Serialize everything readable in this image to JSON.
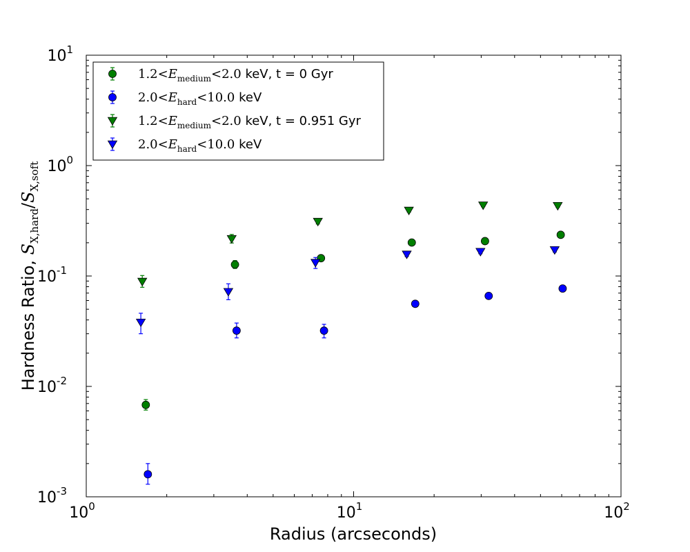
{
  "chart_data": {
    "type": "scatter",
    "xscale": "log",
    "yscale": "log",
    "xlim": [
      1,
      100
    ],
    "ylim": [
      0.001,
      10
    ],
    "grid": false,
    "legend_position": "top-left",
    "xlabel": "Radius (arcseconds)",
    "ylabel": {
      "prefix": "Hardness Ratio, ",
      "math_parts": [
        "S",
        "X,hard",
        "/",
        "S",
        "X,soft"
      ]
    },
    "x_ticks": [
      {
        "base": "10",
        "exp": "0",
        "value": 1
      },
      {
        "base": "10",
        "exp": "1",
        "value": 10
      },
      {
        "base": "10",
        "exp": "2",
        "value": 100
      }
    ],
    "y_ticks": [
      {
        "base": "10",
        "exp": "-3",
        "value": 0.001
      },
      {
        "base": "10",
        "exp": "-2",
        "value": 0.01
      },
      {
        "base": "10",
        "exp": "-1",
        "value": 0.1
      },
      {
        "base": "10",
        "exp": "0",
        "value": 1
      },
      {
        "base": "10",
        "exp": "1",
        "value": 10
      }
    ],
    "series": [
      {
        "name": "1.2 < E_medium < 2.0 keV, t = 0 Gyr",
        "legend": {
          "lo": "1.2",
          "sym": "E",
          "sub": "medium",
          "hi": "2.0",
          "rest": " keV, t = 0 Gyr"
        },
        "marker": "circle",
        "color": "#007f00",
        "points": [
          {
            "x": 1.67,
            "y": 0.0068,
            "yerr_lo": 0.0061,
            "yerr_hi": 0.0076
          },
          {
            "x": 3.6,
            "y": 0.127,
            "yerr_lo": 0.117,
            "yerr_hi": 0.138
          },
          {
            "x": 7.55,
            "y": 0.145,
            "yerr_lo": 0.137,
            "yerr_hi": 0.152
          },
          {
            "x": 16.5,
            "y": 0.201,
            "yerr_lo": 0.193,
            "yerr_hi": 0.209
          },
          {
            "x": 31.0,
            "y": 0.207,
            "yerr_lo": 0.199,
            "yerr_hi": 0.215
          },
          {
            "x": 59.5,
            "y": 0.236,
            "yerr_lo": 0.228,
            "yerr_hi": 0.244
          }
        ]
      },
      {
        "name": "2.0 < E_hard < 10.0 keV",
        "legend": {
          "lo": "2.0",
          "sym": "E",
          "sub": "hard",
          "hi": "10.0",
          "rest": " keV"
        },
        "marker": "circle",
        "color": "#0000ff",
        "points": [
          {
            "x": 1.7,
            "y": 0.0016,
            "yerr_lo": 0.0013,
            "yerr_hi": 0.002
          },
          {
            "x": 3.65,
            "y": 0.032,
            "yerr_lo": 0.0275,
            "yerr_hi": 0.0375
          },
          {
            "x": 7.75,
            "y": 0.032,
            "yerr_lo": 0.0275,
            "yerr_hi": 0.0365
          },
          {
            "x": 17.0,
            "y": 0.056,
            "yerr_lo": 0.054,
            "yerr_hi": 0.058
          },
          {
            "x": 32.0,
            "y": 0.066,
            "yerr_lo": 0.064,
            "yerr_hi": 0.069
          },
          {
            "x": 60.5,
            "y": 0.077,
            "yerr_lo": 0.075,
            "yerr_hi": 0.08
          }
        ]
      },
      {
        "name": "1.2 < E_medium < 2.0 keV, t = 0.951 Gyr",
        "legend": {
          "lo": "1.2",
          "sym": "E",
          "sub": "medium",
          "hi": "2.0",
          "rest": " keV, t = 0.951 Gyr"
        },
        "marker": "triangle-down",
        "color": "#007f00",
        "points": [
          {
            "x": 1.62,
            "y": 0.089,
            "yerr_lo": 0.079,
            "yerr_hi": 0.101
          },
          {
            "x": 3.5,
            "y": 0.217,
            "yerr_lo": 0.199,
            "yerr_hi": 0.238
          },
          {
            "x": 7.35,
            "y": 0.311,
            "yerr_lo": 0.296,
            "yerr_hi": 0.329
          },
          {
            "x": 16.1,
            "y": 0.392,
            "yerr_lo": 0.379,
            "yerr_hi": 0.407
          },
          {
            "x": 30.5,
            "y": 0.437,
            "yerr_lo": 0.424,
            "yerr_hi": 0.451
          },
          {
            "x": 58.0,
            "y": 0.432,
            "yerr_lo": 0.419,
            "yerr_hi": 0.445
          }
        ]
      },
      {
        "name": "2.0 < E_hard < 10.0 keV",
        "legend": {
          "lo": "2.0",
          "sym": "E",
          "sub": "hard",
          "hi": "10.0",
          "rest": " keV"
        },
        "marker": "triangle-down",
        "color": "#0000ff",
        "points": [
          {
            "x": 1.6,
            "y": 0.038,
            "yerr_lo": 0.03,
            "yerr_hi": 0.046
          },
          {
            "x": 3.4,
            "y": 0.072,
            "yerr_lo": 0.061,
            "yerr_hi": 0.085
          },
          {
            "x": 7.2,
            "y": 0.132,
            "yerr_lo": 0.117,
            "yerr_hi": 0.147
          },
          {
            "x": 15.8,
            "y": 0.157,
            "yerr_lo": 0.15,
            "yerr_hi": 0.164
          },
          {
            "x": 29.8,
            "y": 0.166,
            "yerr_lo": 0.159,
            "yerr_hi": 0.173
          },
          {
            "x": 56.5,
            "y": 0.172,
            "yerr_lo": 0.165,
            "yerr_hi": 0.179
          }
        ]
      }
    ]
  }
}
